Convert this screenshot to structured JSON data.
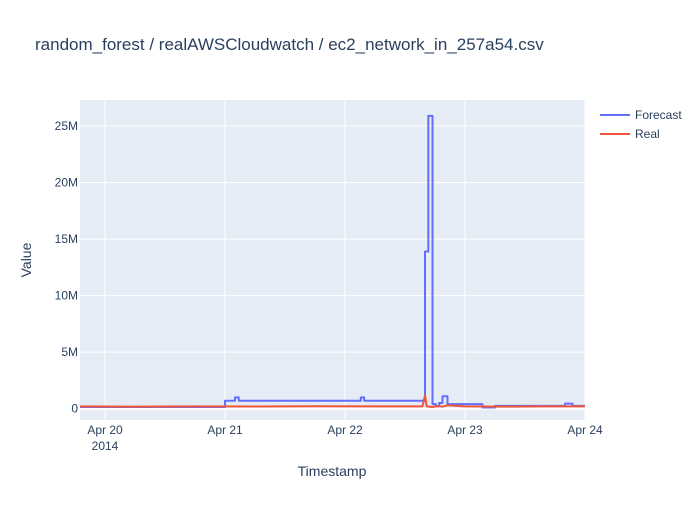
{
  "chart_data": {
    "type": "line",
    "title": "random_forest / realAWSCloudwatch / ec2_network_in_257a54.csv",
    "xlabel": "Timestamp",
    "ylabel": "Value",
    "x_range": [
      "2014-04-19T19:00",
      "2014-04-24T00:00"
    ],
    "y_range": [
      -1000000,
      27300000
    ],
    "x_ticks": [
      {
        "value": "2014-04-20T00:00",
        "label": "Apr 20",
        "sublabel": "2014"
      },
      {
        "value": "2014-04-21T00:00",
        "label": "Apr 21"
      },
      {
        "value": "2014-04-22T00:00",
        "label": "Apr 22"
      },
      {
        "value": "2014-04-23T00:00",
        "label": "Apr 23"
      },
      {
        "value": "2014-04-24T00:00",
        "label": "Apr 24"
      }
    ],
    "y_ticks": [
      {
        "value": 0,
        "label": "0"
      },
      {
        "value": 5000000,
        "label": "5M"
      },
      {
        "value": 10000000,
        "label": "10M"
      },
      {
        "value": 15000000,
        "label": "15M"
      },
      {
        "value": 20000000,
        "label": "20M"
      },
      {
        "value": 25000000,
        "label": "25M"
      }
    ],
    "grid": true,
    "legend_position": "top-right",
    "colors": {
      "forecast": "#636efa",
      "real": "#ef553b",
      "plot_bg": "#e5ecf6",
      "grid": "#ffffff",
      "text": "#2a3f5f"
    },
    "series": [
      {
        "name": "Forecast",
        "color": "#636efa",
        "shape": "step",
        "points": [
          [
            "2014-04-19T19:00",
            150000
          ],
          [
            "2014-04-21T00:00",
            150000
          ],
          [
            "2014-04-21T00:00",
            700000
          ],
          [
            "2014-04-21T02:00",
            700000
          ],
          [
            "2014-04-21T02:00",
            1000000
          ],
          [
            "2014-04-21T02:45",
            1000000
          ],
          [
            "2014-04-21T02:45",
            700000
          ],
          [
            "2014-04-22T03:10",
            700000
          ],
          [
            "2014-04-22T03:10",
            1000000
          ],
          [
            "2014-04-22T03:50",
            1000000
          ],
          [
            "2014-04-22T03:50",
            700000
          ],
          [
            "2014-04-22T16:00",
            700000
          ],
          [
            "2014-04-22T16:00",
            13900000
          ],
          [
            "2014-04-22T16:40",
            13900000
          ],
          [
            "2014-04-22T16:40",
            25900000
          ],
          [
            "2014-04-22T17:30",
            25900000
          ],
          [
            "2014-04-22T17:30",
            400000
          ],
          [
            "2014-04-22T18:10",
            400000
          ],
          [
            "2014-04-22T18:10",
            200000
          ],
          [
            "2014-04-22T18:50",
            200000
          ],
          [
            "2014-04-22T18:50",
            500000
          ],
          [
            "2014-04-22T19:30",
            500000
          ],
          [
            "2014-04-22T19:30",
            1100000
          ],
          [
            "2014-04-22T20:30",
            1100000
          ],
          [
            "2014-04-22T20:30",
            400000
          ],
          [
            "2014-04-23T03:30",
            400000
          ],
          [
            "2014-04-23T03:30",
            100000
          ],
          [
            "2014-04-23T06:00",
            100000
          ],
          [
            "2014-04-23T06:00",
            250000
          ],
          [
            "2014-04-23T20:00",
            250000
          ],
          [
            "2014-04-23T20:00",
            450000
          ],
          [
            "2014-04-23T21:30",
            450000
          ],
          [
            "2014-04-23T21:30",
            250000
          ],
          [
            "2014-04-24T00:00",
            250000
          ]
        ]
      },
      {
        "name": "Real",
        "color": "#ef553b",
        "shape": "linear",
        "points": [
          [
            "2014-04-19T19:00",
            200000
          ],
          [
            "2014-04-20T06:00",
            180000
          ],
          [
            "2014-04-20T18:00",
            210000
          ],
          [
            "2014-04-21T06:00",
            190000
          ],
          [
            "2014-04-21T18:00",
            220000
          ],
          [
            "2014-04-22T06:00",
            200000
          ],
          [
            "2014-04-22T15:30",
            210000
          ],
          [
            "2014-04-22T16:00",
            1200000
          ],
          [
            "2014-04-22T16:20",
            200000
          ],
          [
            "2014-04-22T17:30",
            150000
          ],
          [
            "2014-04-22T18:30",
            250000
          ],
          [
            "2014-04-22T19:30",
            180000
          ],
          [
            "2014-04-22T20:30",
            300000
          ],
          [
            "2014-04-23T00:00",
            200000
          ],
          [
            "2014-04-23T08:00",
            180000
          ],
          [
            "2014-04-23T16:00",
            210000
          ],
          [
            "2014-04-24T00:00",
            200000
          ]
        ]
      }
    ]
  }
}
